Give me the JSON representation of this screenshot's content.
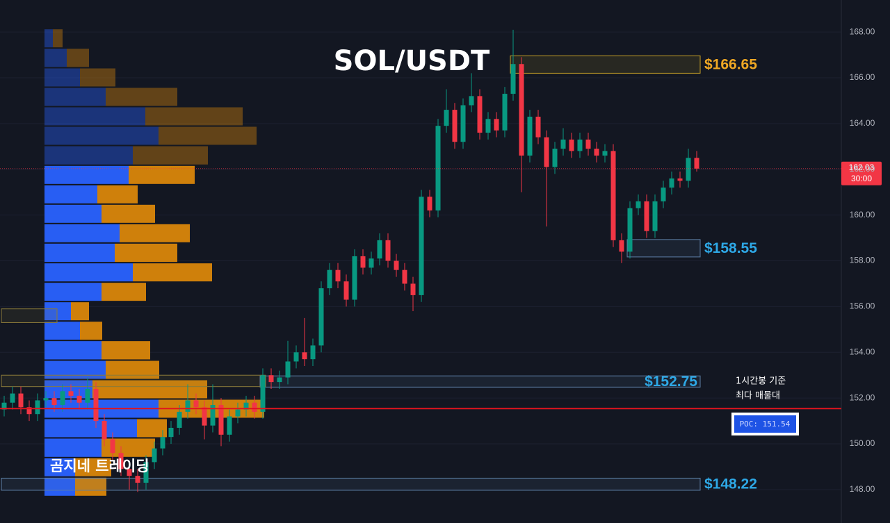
{
  "chart_data": {
    "type": "candlestick",
    "title": "SOL/USDT",
    "watermark": "곰지네 트레이딩",
    "ylim": [
      146.54,
      169.4
    ],
    "yticks": [
      {
        "value": 148,
        "label": "148.00"
      },
      {
        "value": 150,
        "label": "150.00"
      },
      {
        "value": 152,
        "label": "152.00"
      },
      {
        "value": 154,
        "label": "154.00"
      },
      {
        "value": 156,
        "label": "156.00"
      },
      {
        "value": 158,
        "label": "158.00"
      },
      {
        "value": 160,
        "label": "160.00"
      },
      {
        "value": 162,
        "label": "162.00"
      },
      {
        "value": 164,
        "label": "164.00"
      },
      {
        "value": 166,
        "label": "166.00"
      },
      {
        "value": 168,
        "label": "168.00"
      }
    ],
    "up_color": "#089981",
    "down_color": "#f23645",
    "open": [
      151.5,
      151.8,
      152.2,
      151.6,
      151.3,
      151.9,
      152.0,
      151.7,
      152.3,
      152.1,
      151.8,
      152.4,
      151.0,
      150.2,
      149.6,
      148.9,
      148.6,
      148.3,
      149.2,
      149.8,
      150.3,
      150.7,
      151.4,
      151.9,
      151.6,
      150.8,
      151.7,
      150.4,
      151.2,
      151.5,
      151.8,
      151.4,
      153.0,
      152.7,
      152.9,
      153.6,
      154.0,
      153.7,
      154.3,
      156.8,
      157.6,
      157.1,
      156.3,
      158.2,
      157.7,
      158.1,
      158.9,
      158.0,
      157.6,
      157.0,
      156.5,
      160.8,
      160.2,
      163.9,
      164.6,
      163.2,
      164.8,
      165.2,
      163.6,
      164.2,
      163.7,
      165.3,
      166.6,
      162.6,
      164.3,
      163.4,
      162.1,
      162.9,
      163.3,
      162.8,
      163.3,
      162.9,
      162.6,
      162.8,
      158.9,
      158.4,
      160.3,
      160.6,
      159.3,
      160.6,
      161.2,
      161.6,
      161.5,
      162.5
    ],
    "high": [
      152.1,
      152.5,
      152.5,
      151.9,
      152.2,
      152.3,
      152.3,
      152.6,
      152.6,
      152.4,
      152.9,
      152.7,
      151.3,
      150.5,
      149.9,
      149.2,
      148.9,
      149.5,
      150.1,
      150.6,
      151.0,
      151.7,
      152.6,
      152.2,
      151.9,
      152.6,
      152.0,
      151.5,
      151.8,
      152.1,
      152.1,
      153.3,
      153.3,
      153.2,
      154.5,
      154.3,
      155.5,
      154.6,
      157.1,
      157.9,
      157.9,
      157.4,
      158.5,
      158.5,
      158.4,
      159.2,
      159.2,
      158.3,
      157.9,
      157.3,
      161.1,
      161.1,
      164.2,
      165.5,
      164.9,
      165.1,
      166.2,
      165.5,
      164.5,
      164.5,
      165.6,
      168.1,
      166.9,
      164.6,
      164.6,
      163.7,
      163.2,
      163.8,
      163.6,
      163.6,
      163.6,
      163.2,
      163.1,
      163.1,
      159.2,
      160.6,
      160.9,
      160.9,
      160.9,
      161.5,
      161.9,
      161.9,
      162.9,
      162.8
    ],
    "low": [
      151.2,
      151.5,
      151.3,
      151.0,
      151.0,
      151.6,
      151.4,
      151.4,
      151.8,
      151.5,
      151.5,
      150.7,
      149.9,
      149.3,
      148.6,
      148.0,
      147.9,
      148.0,
      148.9,
      149.5,
      150.0,
      150.4,
      151.1,
      151.3,
      150.2,
      150.5,
      149.9,
      150.1,
      150.9,
      151.2,
      151.1,
      151.1,
      152.4,
      152.4,
      152.6,
      153.3,
      153.4,
      153.4,
      154.0,
      156.5,
      156.8,
      156.0,
      156.0,
      157.4,
      157.4,
      157.8,
      157.7,
      157.3,
      156.7,
      155.8,
      156.2,
      159.9,
      159.9,
      163.6,
      162.9,
      162.9,
      164.5,
      163.3,
      163.3,
      163.4,
      163.4,
      165.0,
      161.0,
      162.3,
      163.1,
      159.5,
      161.8,
      162.6,
      162.5,
      162.5,
      162.6,
      162.3,
      162.3,
      158.6,
      157.9,
      158.1,
      160.0,
      159.0,
      159.0,
      160.3,
      160.9,
      161.2,
      161.2,
      161.9
    ],
    "close": [
      151.8,
      152.2,
      151.6,
      151.3,
      151.9,
      152.0,
      151.7,
      152.3,
      152.1,
      151.8,
      152.4,
      151.0,
      150.2,
      149.6,
      148.9,
      148.6,
      148.3,
      149.2,
      149.8,
      150.3,
      150.7,
      151.4,
      151.9,
      151.6,
      150.8,
      151.7,
      150.4,
      151.2,
      151.5,
      151.8,
      151.4,
      153.0,
      152.7,
      152.9,
      153.6,
      154.0,
      153.7,
      154.3,
      156.8,
      157.6,
      157.1,
      156.3,
      158.2,
      157.7,
      158.1,
      158.9,
      158.0,
      157.6,
      157.0,
      156.5,
      160.8,
      160.2,
      163.9,
      164.6,
      163.2,
      164.8,
      165.2,
      163.6,
      164.2,
      163.7,
      165.3,
      166.6,
      162.6,
      164.3,
      163.4,
      162.1,
      162.9,
      163.3,
      162.8,
      163.3,
      162.9,
      162.6,
      162.8,
      158.9,
      158.4,
      160.3,
      160.6,
      159.3,
      160.6,
      161.2,
      161.6,
      161.5,
      162.5,
      162.03
    ],
    "last_price": {
      "value": 162.03,
      "label": "162.03",
      "countdown": "30:00"
    },
    "volume_profile": {
      "bins": [
        147.7,
        148.55,
        149.4,
        150.26,
        151.11,
        151.96,
        152.81,
        153.66,
        154.52,
        155.37,
        156.22,
        157.07,
        157.92,
        158.78,
        159.63,
        160.48,
        161.33,
        162.18,
        163.04,
        163.89,
        164.74,
        165.59,
        166.44,
        167.3,
        168.15
      ],
      "buy": [
        44,
        44,
        82,
        133,
        164,
        69,
        88,
        82,
        51,
        38,
        82,
        127,
        101,
        108,
        82,
        76,
        121,
        127,
        164,
        145,
        88,
        51,
        32,
        12
      ],
      "sell": [
        45,
        52,
        77,
        43,
        152,
        165,
        77,
        70,
        32,
        26,
        64,
        114,
        90,
        101,
        77,
        58,
        95,
        108,
        141,
        140,
        103,
        51,
        32,
        14
      ],
      "buy_color": "#2962ff",
      "sell_color": "#d9860b",
      "value_area": [
        147.7,
        162.18
      ]
    },
    "zones": [
      {
        "label": "$166.65",
        "top": 166.96,
        "bottom": 166.2,
        "start": 61,
        "color": "#c9a227",
        "text_color": "#f0a824",
        "label_side": "outside"
      },
      {
        "label": "$158.55",
        "top": 158.93,
        "bottom": 158.17,
        "start": 75,
        "color": "#5d7fa6",
        "text_color": "#2ea8e6",
        "label_side": "outside"
      },
      {
        "label": "$152.75",
        "top": 152.97,
        "bottom": 152.48,
        "start": 31,
        "color": "#5d7fa6",
        "text_color": "#2ea8e6",
        "label_side": "inside"
      },
      {
        "label": "$148.22",
        "top": 148.5,
        "bottom": 147.97,
        "start": 0,
        "color": "#5d7fa6",
        "text_color": "#2ea8e6",
        "label_side": "outside"
      },
      {
        "top": 155.9,
        "bottom": 155.3,
        "start": 0,
        "end": 6,
        "color": "#8a7a3a"
      },
      {
        "top": 153.0,
        "bottom": 152.5,
        "start": 0,
        "end": 31,
        "color": "#8a7a3a"
      }
    ],
    "poc": {
      "value": 151.54,
      "label": "POC: 151.54",
      "color": "#e0141e"
    },
    "annotation": [
      "1시간봉 기준",
      "최다 매물대"
    ]
  }
}
